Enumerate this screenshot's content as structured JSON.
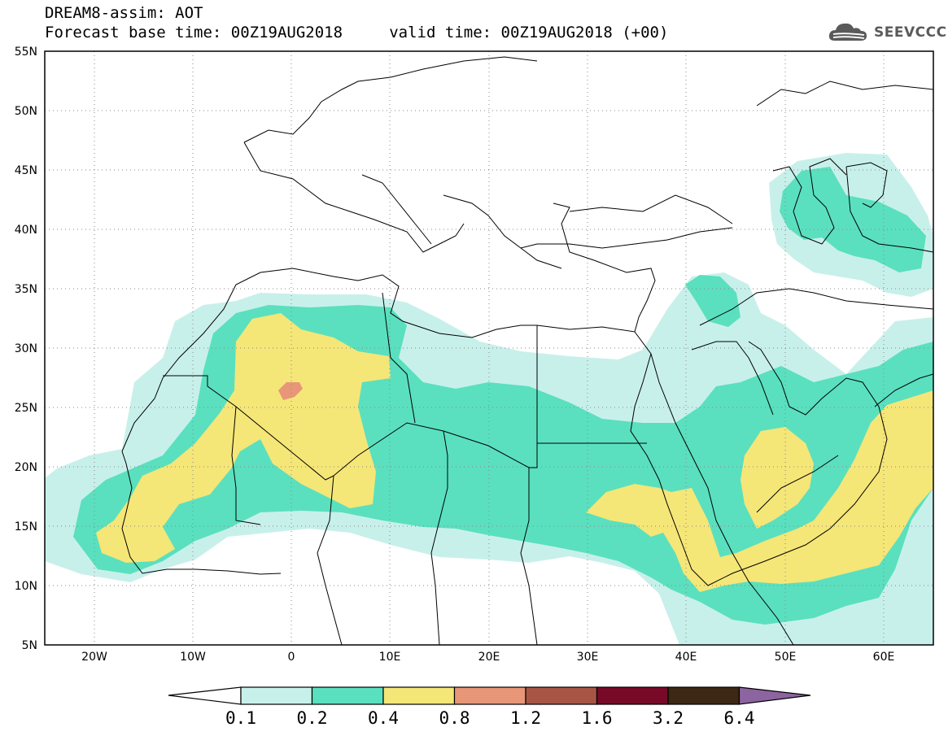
{
  "header": {
    "title_line1": "DREAM8-assim: AOT",
    "title_line2": "Forecast base time: 00Z19AUG2018     valid time: 00Z19AUG2018 (+00)",
    "logo_text": "SEEVCCC"
  },
  "map": {
    "lon_range": [
      -25,
      65
    ],
    "lat_range": [
      5,
      55
    ],
    "lat_labels": [
      "55N",
      "50N",
      "45N",
      "40N",
      "35N",
      "30N",
      "25N",
      "20N",
      "15N",
      "10N",
      "5N"
    ],
    "lon_labels": [
      "20W",
      "10W",
      "0",
      "10E",
      "20E",
      "30E",
      "40E",
      "50E",
      "60E"
    ],
    "grid": "dotted"
  },
  "legend": {
    "thresholds": [
      "0.1",
      "0.2",
      "0.4",
      "0.8",
      "1.2",
      "1.6",
      "3.2",
      "6.4"
    ],
    "colors": {
      "below": "#ffffff",
      "c1": "#c8f0eb",
      "c2": "#5ae0be",
      "c3": "#f5e678",
      "c4": "#e89678",
      "c5": "#a85545",
      "c6": "#780a28",
      "c7": "#3c2814",
      "above": "#8c64a0"
    }
  }
}
